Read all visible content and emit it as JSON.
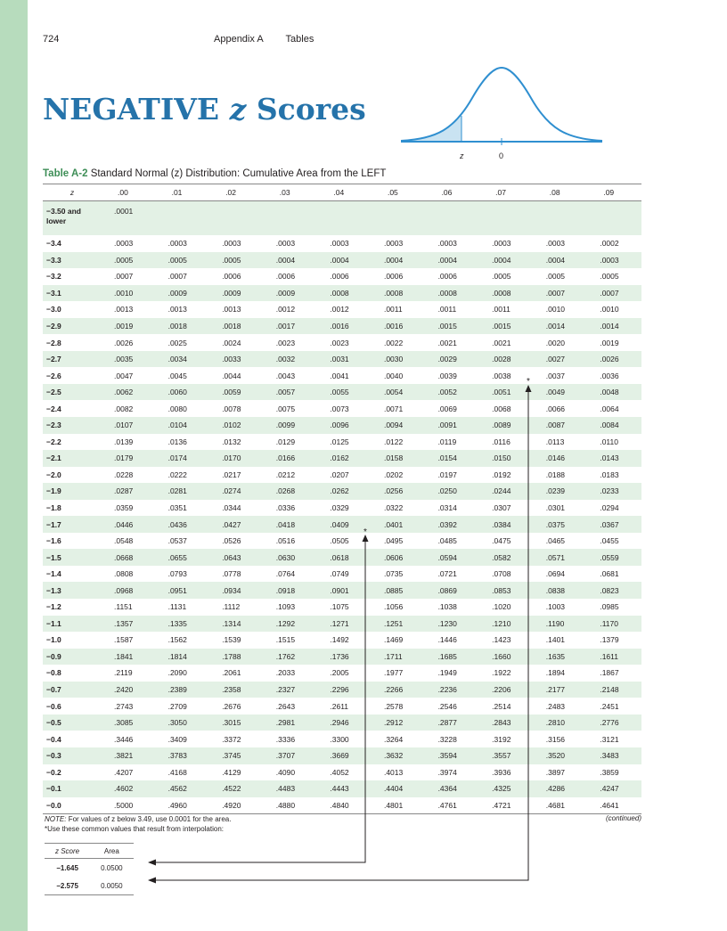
{
  "page": {
    "number": "724",
    "section": "Appendix A",
    "subsection": "Tables"
  },
  "banner": {
    "word1": "NEGATIVE",
    "word2": "z",
    "word3": "Scores",
    "axis_z": "z",
    "axis_zero": "0"
  },
  "caption": {
    "label": "Table A-2",
    "text": "Standard Normal (z) Distribution: Cumulative Area from the LEFT"
  },
  "table": {
    "z_header": "z",
    "columns": [
      ".00",
      ".01",
      ".02",
      ".03",
      ".04",
      ".05",
      ".06",
      ".07",
      ".08",
      ".09"
    ],
    "first_row": {
      "z_line1": "−3.50 and",
      "z_line2": "lower",
      "value": ".0001"
    },
    "rows": [
      {
        "z": "−3.4",
        "v": [
          ".0003",
          ".0003",
          ".0003",
          ".0003",
          ".0003",
          ".0003",
          ".0003",
          ".0003",
          ".0003",
          ".0002"
        ]
      },
      {
        "z": "−3.3",
        "v": [
          ".0005",
          ".0005",
          ".0005",
          ".0004",
          ".0004",
          ".0004",
          ".0004",
          ".0004",
          ".0004",
          ".0003"
        ]
      },
      {
        "z": "−3.2",
        "v": [
          ".0007",
          ".0007",
          ".0006",
          ".0006",
          ".0006",
          ".0006",
          ".0006",
          ".0005",
          ".0005",
          ".0005"
        ]
      },
      {
        "z": "−3.1",
        "v": [
          ".0010",
          ".0009",
          ".0009",
          ".0009",
          ".0008",
          ".0008",
          ".0008",
          ".0008",
          ".0007",
          ".0007"
        ]
      },
      {
        "z": "−3.0",
        "v": [
          ".0013",
          ".0013",
          ".0013",
          ".0012",
          ".0012",
          ".0011",
          ".0011",
          ".0011",
          ".0010",
          ".0010"
        ]
      },
      {
        "z": "−2.9",
        "v": [
          ".0019",
          ".0018",
          ".0018",
          ".0017",
          ".0016",
          ".0016",
          ".0015",
          ".0015",
          ".0014",
          ".0014"
        ]
      },
      {
        "z": "−2.8",
        "v": [
          ".0026",
          ".0025",
          ".0024",
          ".0023",
          ".0023",
          ".0022",
          ".0021",
          ".0021",
          ".0020",
          ".0019"
        ]
      },
      {
        "z": "−2.7",
        "v": [
          ".0035",
          ".0034",
          ".0033",
          ".0032",
          ".0031",
          ".0030",
          ".0029",
          ".0028",
          ".0027",
          ".0026"
        ]
      },
      {
        "z": "−2.6",
        "v": [
          ".0047",
          ".0045",
          ".0044",
          ".0043",
          ".0041",
          ".0040",
          ".0039",
          ".0038",
          ".0037",
          ".0036"
        ]
      },
      {
        "z": "−2.5",
        "v": [
          ".0062",
          ".0060",
          ".0059",
          ".0057",
          ".0055",
          ".0054",
          ".0052",
          ".0051",
          ".0049",
          ".0048"
        ]
      },
      {
        "z": "−2.4",
        "v": [
          ".0082",
          ".0080",
          ".0078",
          ".0075",
          ".0073",
          ".0071",
          ".0069",
          ".0068",
          ".0066",
          ".0064"
        ]
      },
      {
        "z": "−2.3",
        "v": [
          ".0107",
          ".0104",
          ".0102",
          ".0099",
          ".0096",
          ".0094",
          ".0091",
          ".0089",
          ".0087",
          ".0084"
        ]
      },
      {
        "z": "−2.2",
        "v": [
          ".0139",
          ".0136",
          ".0132",
          ".0129",
          ".0125",
          ".0122",
          ".0119",
          ".0116",
          ".0113",
          ".0110"
        ]
      },
      {
        "z": "−2.1",
        "v": [
          ".0179",
          ".0174",
          ".0170",
          ".0166",
          ".0162",
          ".0158",
          ".0154",
          ".0150",
          ".0146",
          ".0143"
        ]
      },
      {
        "z": "−2.0",
        "v": [
          ".0228",
          ".0222",
          ".0217",
          ".0212",
          ".0207",
          ".0202",
          ".0197",
          ".0192",
          ".0188",
          ".0183"
        ]
      },
      {
        "z": "−1.9",
        "v": [
          ".0287",
          ".0281",
          ".0274",
          ".0268",
          ".0262",
          ".0256",
          ".0250",
          ".0244",
          ".0239",
          ".0233"
        ]
      },
      {
        "z": "−1.8",
        "v": [
          ".0359",
          ".0351",
          ".0344",
          ".0336",
          ".0329",
          ".0322",
          ".0314",
          ".0307",
          ".0301",
          ".0294"
        ]
      },
      {
        "z": "−1.7",
        "v": [
          ".0446",
          ".0436",
          ".0427",
          ".0418",
          ".0409",
          ".0401",
          ".0392",
          ".0384",
          ".0375",
          ".0367"
        ]
      },
      {
        "z": "−1.6",
        "v": [
          ".0548",
          ".0537",
          ".0526",
          ".0516",
          ".0505",
          ".0495",
          ".0485",
          ".0475",
          ".0465",
          ".0455"
        ]
      },
      {
        "z": "−1.5",
        "v": [
          ".0668",
          ".0655",
          ".0643",
          ".0630",
          ".0618",
          ".0606",
          ".0594",
          ".0582",
          ".0571",
          ".0559"
        ]
      },
      {
        "z": "−1.4",
        "v": [
          ".0808",
          ".0793",
          ".0778",
          ".0764",
          ".0749",
          ".0735",
          ".0721",
          ".0708",
          ".0694",
          ".0681"
        ]
      },
      {
        "z": "−1.3",
        "v": [
          ".0968",
          ".0951",
          ".0934",
          ".0918",
          ".0901",
          ".0885",
          ".0869",
          ".0853",
          ".0838",
          ".0823"
        ]
      },
      {
        "z": "−1.2",
        "v": [
          ".1151",
          ".1131",
          ".1112",
          ".1093",
          ".1075",
          ".1056",
          ".1038",
          ".1020",
          ".1003",
          ".0985"
        ]
      },
      {
        "z": "−1.1",
        "v": [
          ".1357",
          ".1335",
          ".1314",
          ".1292",
          ".1271",
          ".1251",
          ".1230",
          ".1210",
          ".1190",
          ".1170"
        ]
      },
      {
        "z": "−1.0",
        "v": [
          ".1587",
          ".1562",
          ".1539",
          ".1515",
          ".1492",
          ".1469",
          ".1446",
          ".1423",
          ".1401",
          ".1379"
        ]
      },
      {
        "z": "−0.9",
        "v": [
          ".1841",
          ".1814",
          ".1788",
          ".1762",
          ".1736",
          ".1711",
          ".1685",
          ".1660",
          ".1635",
          ".1611"
        ]
      },
      {
        "z": "−0.8",
        "v": [
          ".2119",
          ".2090",
          ".2061",
          ".2033",
          ".2005",
          ".1977",
          ".1949",
          ".1922",
          ".1894",
          ".1867"
        ]
      },
      {
        "z": "−0.7",
        "v": [
          ".2420",
          ".2389",
          ".2358",
          ".2327",
          ".2296",
          ".2266",
          ".2236",
          ".2206",
          ".2177",
          ".2148"
        ]
      },
      {
        "z": "−0.6",
        "v": [
          ".2743",
          ".2709",
          ".2676",
          ".2643",
          ".2611",
          ".2578",
          ".2546",
          ".2514",
          ".2483",
          ".2451"
        ]
      },
      {
        "z": "−0.5",
        "v": [
          ".3085",
          ".3050",
          ".3015",
          ".2981",
          ".2946",
          ".2912",
          ".2877",
          ".2843",
          ".2810",
          ".2776"
        ]
      },
      {
        "z": "−0.4",
        "v": [
          ".3446",
          ".3409",
          ".3372",
          ".3336",
          ".3300",
          ".3264",
          ".3228",
          ".3192",
          ".3156",
          ".3121"
        ]
      },
      {
        "z": "−0.3",
        "v": [
          ".3821",
          ".3783",
          ".3745",
          ".3707",
          ".3669",
          ".3632",
          ".3594",
          ".3557",
          ".3520",
          ".3483"
        ]
      },
      {
        "z": "−0.2",
        "v": [
          ".4207",
          ".4168",
          ".4129",
          ".4090",
          ".4052",
          ".4013",
          ".3974",
          ".3936",
          ".3897",
          ".3859"
        ]
      },
      {
        "z": "−0.1",
        "v": [
          ".4602",
          ".4562",
          ".4522",
          ".4483",
          ".4443",
          ".4404",
          ".4364",
          ".4325",
          ".4286",
          ".4247"
        ]
      },
      {
        "z": "−0.0",
        "v": [
          ".5000",
          ".4960",
          ".4920",
          ".4880",
          ".4840",
          ".4801",
          ".4761",
          ".4721",
          ".4681",
          ".4641"
        ]
      }
    ],
    "star": "*"
  },
  "note": {
    "prefix": "NOTE:",
    "line1": "For values of z below 3.49, use 0.0001 for the area.",
    "line2": "*Use these common values that result from interpolation:",
    "continued": "(continued)"
  },
  "small_table": {
    "headers": [
      "z Score",
      "Area"
    ],
    "rows": [
      [
        "−1.645",
        "0.0500"
      ],
      [
        "−2.575",
        "0.0050"
      ]
    ]
  },
  "colors": {
    "sidebar": "#b7dcbd",
    "title_blue": "#2573aa",
    "row_shade": "#e3f1e5",
    "label_green": "#3e8e57"
  }
}
